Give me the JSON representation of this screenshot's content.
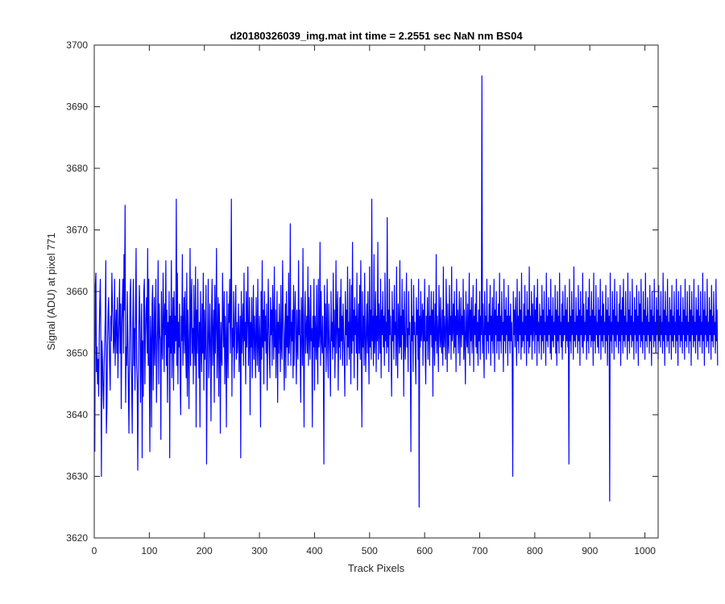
{
  "chart_data": {
    "type": "line",
    "title": "d20180326039_img.mat int time = 2.2551 sec  NaN nm BS04",
    "xlabel": "Track Pixels",
    "ylabel": "Signal (ADU) at pixel 771",
    "xlim": [
      0,
      1024
    ],
    "ylim": [
      3620,
      3700
    ],
    "xticks": [
      0,
      100,
      200,
      300,
      400,
      500,
      600,
      700,
      800,
      900,
      1000
    ],
    "yticks": [
      3620,
      3630,
      3640,
      3650,
      3660,
      3670,
      3680,
      3690,
      3700
    ],
    "grid": false,
    "legend": "none",
    "series": [
      {
        "color": "#0000ff",
        "x_start": 1,
        "x_step": 1,
        "values": [
          3634,
          3661,
          3663,
          3647,
          3651,
          3645,
          3649,
          3643,
          3652,
          3658,
          3662,
          3652,
          3630,
          3652,
          3649,
          3644,
          3641,
          3648,
          3652,
          3656,
          3665,
          3637,
          3641,
          3651,
          3656,
          3659,
          3653,
          3648,
          3644,
          3656,
          3652,
          3663,
          3658,
          3655,
          3650,
          3652,
          3662,
          3648,
          3654,
          3657,
          3650,
          3659,
          3646,
          3652,
          3656,
          3662,
          3650,
          3658,
          3641,
          3654,
          3658,
          3662,
          3650,
          3666,
          3657,
          3674,
          3642,
          3651,
          3648,
          3660,
          3652,
          3644,
          3637,
          3651,
          3659,
          3662,
          3649,
          3645,
          3637,
          3655,
          3662,
          3648,
          3654,
          3644,
          3658,
          3667,
          3648,
          3645,
          3631,
          3646,
          3654,
          3661,
          3656,
          3642,
          3651,
          3658,
          3633,
          3652,
          3643,
          3660,
          3662,
          3645,
          3653,
          3657,
          3659,
          3650,
          3667,
          3648,
          3662,
          3646,
          3634,
          3656,
          3652,
          3638,
          3658,
          3661,
          3644,
          3651,
          3659,
          3648,
          3655,
          3662,
          3642,
          3650,
          3654,
          3665,
          3645,
          3658,
          3653,
          3652,
          3636,
          3660,
          3651,
          3649,
          3663,
          3656,
          3647,
          3658,
          3653,
          3665,
          3648,
          3657,
          3642,
          3655,
          3651,
          3660,
          3633,
          3656,
          3650,
          3665,
          3646,
          3654,
          3659,
          3644,
          3660,
          3650,
          3656,
          3652,
          3675,
          3648,
          3663,
          3645,
          3655,
          3651,
          3658,
          3646,
          3640,
          3656,
          3652,
          3666,
          3648,
          3654,
          3659,
          3650,
          3660,
          3652,
          3646,
          3663,
          3643,
          3657,
          3652,
          3641,
          3653,
          3667,
          3648,
          3657,
          3662,
          3650,
          3654,
          3645,
          3661,
          3652,
          3648,
          3664,
          3638,
          3657,
          3650,
          3662,
          3653,
          3646,
          3655,
          3638,
          3660,
          3652,
          3647,
          3658,
          3650,
          3663,
          3644,
          3657,
          3649,
          3653,
          3661,
          3632,
          3648,
          3654,
          3662,
          3646,
          3650,
          3658,
          3652,
          3639,
          3656,
          3662,
          3648,
          3653,
          3657,
          3642,
          3661,
          3650,
          3655,
          3667,
          3646,
          3652,
          3659,
          3643,
          3658,
          3652,
          3637,
          3655,
          3650,
          3648,
          3663,
          3655,
          3651,
          3660,
          3645,
          3656,
          3652,
          3638,
          3660,
          3651,
          3646,
          3658,
          3655,
          3662,
          3650,
          3657,
          3675,
          3643,
          3654,
          3651,
          3660,
          3646,
          3652,
          3657,
          3661,
          3649,
          3655,
          3650,
          3653,
          3658,
          3647,
          3652,
          3656,
          3633,
          3660,
          3650,
          3654,
          3658,
          3648,
          3663,
          3652,
          3655,
          3645,
          3660,
          3651,
          3656,
          3664,
          3648,
          3653,
          3659,
          3640,
          3655,
          3651,
          3659,
          3646,
          3653,
          3661,
          3649,
          3656,
          3652,
          3646,
          3659,
          3653,
          3648,
          3662,
          3651,
          3647,
          3656,
          3652,
          3638,
          3660,
          3649,
          3665,
          3651,
          3657,
          3645,
          3660,
          3652,
          3656,
          3650,
          3658,
          3644,
          3651,
          3662,
          3655,
          3650,
          3646,
          3659,
          3653,
          3657,
          3648,
          3661,
          3655,
          3649,
          3664,
          3651,
          3657,
          3646,
          3653,
          3660,
          3642,
          3655,
          3650,
          3658,
          3653,
          3647,
          3661,
          3651,
          3649,
          3665,
          3656,
          3652,
          3644,
          3653,
          3658,
          3646,
          3660,
          3651,
          3656,
          3648,
          3663,
          3650,
          3653,
          3671,
          3648,
          3655,
          3652,
          3657,
          3646,
          3661,
          3648,
          3656,
          3660,
          3652,
          3645,
          3657,
          3651,
          3649,
          3665,
          3653,
          3657,
          3650,
          3642,
          3659,
          3654,
          3648,
          3667,
          3651,
          3638,
          3656,
          3660,
          3650,
          3654,
          3656,
          3650,
          3664,
          3648,
          3659,
          3653,
          3649,
          3661,
          3652,
          3654,
          3638,
          3656,
          3651,
          3662,
          3644,
          3656,
          3653,
          3649,
          3661,
          3651,
          3645,
          3662,
          3651,
          3653,
          3668,
          3648,
          3660,
          3652,
          3650,
          3656,
          3649,
          3632,
          3661,
          3651,
          3658,
          3647,
          3654,
          3662,
          3650,
          3646,
          3658,
          3653,
          3650,
          3643,
          3660,
          3652,
          3655,
          3649,
          3663,
          3651,
          3657,
          3646,
          3653,
          3665,
          3650,
          3656,
          3660,
          3644,
          3654,
          3651,
          3659,
          3649,
          3662,
          3652,
          3656,
          3648,
          3658,
          3653,
          3650,
          3643,
          3660,
          3653,
          3657,
          3648,
          3664,
          3651,
          3655,
          3649,
          3662,
          3653,
          3645,
          3661,
          3650,
          3668,
          3652,
          3657,
          3646,
          3659,
          3653,
          3656,
          3650,
          3663,
          3644,
          3654,
          3658,
          3650,
          3661,
          3649,
          3665,
          3652,
          3638,
          3660,
          3651,
          3656,
          3648,
          3663,
          3653,
          3647,
          3654,
          3658,
          3650,
          3660,
          3652,
          3645,
          3664,
          3651,
          3657,
          3649,
          3675,
          3652,
          3656,
          3648,
          3666,
          3650,
          3653,
          3660,
          3647,
          3656,
          3652,
          3668,
          3649,
          3658,
          3654,
          3650,
          3662,
          3646,
          3657,
          3653,
          3660,
          3651,
          3656,
          3648,
          3663,
          3652,
          3655,
          3650,
          3672,
          3651,
          3657,
          3647,
          3662,
          3653,
          3656,
          3650,
          3643,
          3660,
          3652,
          3657,
          3649,
          3661,
          3653,
          3655,
          3648,
          3664,
          3652,
          3646,
          3658,
          3654,
          3650,
          3665,
          3651,
          3656,
          3649,
          3662,
          3653,
          3657,
          3643,
          3660,
          3652,
          3649,
          3655,
          3663,
          3651,
          3654,
          3647,
          3660,
          3653,
          3655,
          3650,
          3634,
          3662,
          3652,
          3656,
          3647,
          3661,
          3653,
          3655,
          3650,
          3645,
          3659,
          3653,
          3657,
          3649,
          3662,
          3625,
          3656,
          3651,
          3660,
          3652,
          3654,
          3658,
          3648,
          3657,
          3652,
          3662,
          3650,
          3645,
          3656,
          3652,
          3659,
          3649,
          3654,
          3661,
          3648,
          3656,
          3653,
          3660,
          3651,
          3657,
          3643,
          3660,
          3653,
          3648,
          3658,
          3652,
          3666,
          3650,
          3656,
          3653,
          3647,
          3661,
          3654,
          3651,
          3659,
          3652,
          3650,
          3657,
          3648,
          3664,
          3651,
          3656,
          3653,
          3649,
          3662,
          3655,
          3647,
          3658,
          3652,
          3650,
          3661,
          3653,
          3656,
          3649,
          3664,
          3652,
          3654,
          3658,
          3650,
          3660,
          3651,
          3656,
          3647,
          3662,
          3653,
          3657,
          3650,
          3655,
          3660,
          3648,
          3654,
          3659,
          3651,
          3656,
          3653,
          3662,
          3649,
          3657,
          3652,
          3645,
          3660,
          3653,
          3651,
          3658,
          3650,
          3655,
          3663,
          3648,
          3657,
          3652,
          3659,
          3650,
          3654,
          3661,
          3647,
          3656,
          3653,
          3658,
          3651,
          3662,
          3650,
          3655,
          3648,
          3657,
          3652,
          3660,
          3649,
          3656,
          3653,
          3695,
          3650,
          3658,
          3652,
          3646,
          3660,
          3653,
          3656,
          3649,
          3662,
          3652,
          3655,
          3650,
          3658,
          3653,
          3661,
          3648,
          3656,
          3652,
          3659,
          3650,
          3654,
          3662,
          3647,
          3657,
          3653,
          3660,
          3650,
          3656,
          3652,
          3658,
          3649,
          3663,
          3652,
          3656,
          3650,
          3660,
          3653,
          3655,
          3647,
          3662,
          3652,
          3657,
          3650,
          3659,
          3653,
          3656,
          3648,
          3661,
          3652,
          3656,
          3650,
          3658,
          3652,
          3655,
          3649,
          3630,
          3660,
          3653,
          3657,
          3651,
          3659,
          3654,
          3648,
          3662,
          3652,
          3656,
          3650,
          3660,
          3653,
          3657,
          3649,
          3663,
          3651,
          3655,
          3652,
          3658,
          3650,
          3661,
          3653,
          3656,
          3648,
          3660,
          3652,
          3657,
          3650,
          3664,
          3651,
          3656,
          3653,
          3660,
          3649,
          3658,
          3652,
          3654,
          3661,
          3650,
          3657,
          3653,
          3659,
          3648,
          3662,
          3652,
          3655,
          3650,
          3658,
          3653,
          3656,
          3649,
          3661,
          3652,
          3657,
          3650,
          3660,
          3653,
          3655,
          3648,
          3663,
          3652,
          3656,
          3651,
          3659,
          3653,
          3657,
          3650,
          3662,
          3649,
          3656,
          3652,
          3659,
          3651,
          3655,
          3653,
          3661,
          3650,
          3657,
          3648,
          3660,
          3652,
          3656,
          3650,
          3663,
          3653,
          3655,
          3651,
          3658,
          3649,
          3660,
          3652,
          3656,
          3653,
          3661,
          3650,
          3657,
          3652,
          3659,
          3651,
          3655,
          3632,
          3662,
          3652,
          3656,
          3650,
          3660,
          3653,
          3657,
          3649,
          3664,
          3652,
          3655,
          3651,
          3659,
          3653,
          3656,
          3650,
          3661,
          3652,
          3657,
          3648,
          3660,
          3653,
          3656,
          3651,
          3663,
          3650,
          3658,
          3652,
          3655,
          3653,
          3660,
          3649,
          3657,
          3652,
          3659,
          3650,
          3662,
          3653,
          3656,
          3651,
          3660,
          3652,
          3657,
          3648,
          3663,
          3652,
          3656,
          3650,
          3661,
          3653,
          3655,
          3651,
          3659,
          3650,
          3657,
          3653,
          3662,
          3649,
          3656,
          3652,
          3660,
          3651,
          3658,
          3653,
          3655,
          3650,
          3661,
          3652,
          3657,
          3648,
          3659,
          3653,
          3656,
          3626,
          3663,
          3652,
          3655,
          3650,
          3660,
          3653,
          3657,
          3649,
          3662,
          3652,
          3656,
          3651,
          3660,
          3653,
          3655,
          3650,
          3658,
          3652,
          3661,
          3648,
          3657,
          3653,
          3659,
          3650,
          3662,
          3652,
          3656,
          3651,
          3660,
          3653,
          3655,
          3649,
          3663,
          3652,
          3657,
          3650,
          3660,
          3653,
          3656,
          3651,
          3662,
          3652,
          3655,
          3649,
          3659,
          3653,
          3657,
          3650,
          3661,
          3652,
          3656,
          3648,
          3660,
          3653,
          3658,
          3651,
          3662,
          3652,
          3655,
          3650,
          3660,
          3653,
          3657,
          3649,
          3663,
          3652,
          3656,
          3651,
          3659,
          3653,
          3655,
          3650,
          3661,
          3652,
          3657,
          3648,
          3660,
          3653,
          3656,
          3651,
          3662,
          3652,
          3655,
          3650,
          3659,
          3653,
          3657,
          3649,
          3661,
          3652,
          3656,
          3651,
          3660,
          3653,
          3655,
          3650,
          3663,
          3652,
          3657,
          3648,
          3660,
          3653,
          3656,
          3651,
          3662,
          3652,
          3655,
          3650,
          3659,
          3653,
          3657,
          3649,
          3661,
          3652,
          3656,
          3651,
          3660,
          3653,
          3655,
          3650,
          3662,
          3652,
          3657,
          3648,
          3660,
          3653,
          3656,
          3651,
          3661,
          3652,
          3655,
          3650,
          3659,
          3653,
          3657,
          3649,
          3662,
          3652,
          3656,
          3651,
          3660,
          3653,
          3655,
          3650,
          3661,
          3652,
          3657,
          3648,
          3660,
          3653,
          3656,
          3651,
          3662,
          3652,
          3655,
          3650,
          3659,
          3653,
          3657,
          3649,
          3661,
          3652,
          3656,
          3651,
          3660,
          3653,
          3655,
          3650,
          3663,
          3652,
          3657,
          3648,
          3660,
          3653,
          3656,
          3651,
          3662,
          3652,
          3655,
          3650,
          3659,
          3653,
          3657,
          3649,
          3661,
          3652,
          3656,
          3651,
          3660,
          3653,
          3655,
          3650,
          3662,
          3652,
          3657,
          3648
        ]
      }
    ]
  }
}
